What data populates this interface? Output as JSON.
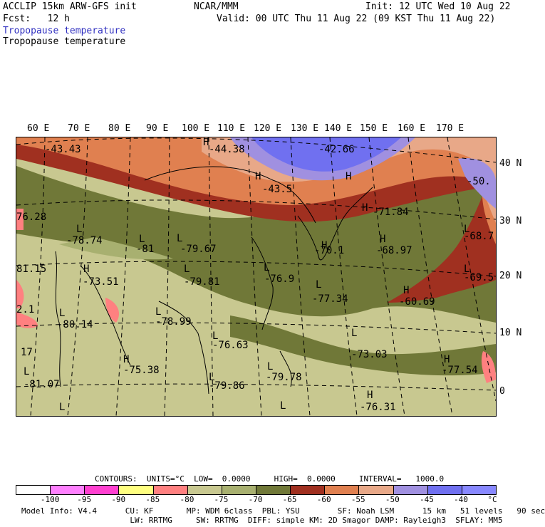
{
  "header": {
    "line1_left": "ACCLIP 15km ARW-GFS init",
    "line1_center": "NCAR/MMM",
    "line1_right": "Init: 12 UTC Wed 10 Aug 22",
    "line2_left": "Fcst:   12 h",
    "line2_right": "Valid: 00 UTC Thu 11 Aug 22 (09 KST Thu 11 Aug 22)",
    "title_blue": "Tropopause temperature",
    "title_black": "Tropopause temperature"
  },
  "lon_labels": [
    "60 E",
    "70 E",
    "80 E",
    "90 E",
    "100 E",
    "110 E",
    "120 E",
    "130 E",
    "140 E",
    "150 E",
    "160 E",
    "170 E"
  ],
  "lat_labels": [
    "40 N",
    "30 N",
    "20 N",
    "10 N",
    "0"
  ],
  "map_labels": [
    {
      "text": "-43.43",
      "kind": "value"
    },
    {
      "text": "H",
      "kind": "hl"
    },
    {
      "text": "-44.38",
      "kind": "value"
    },
    {
      "text": "-42.66",
      "kind": "value"
    },
    {
      "text": "H",
      "kind": "hl"
    },
    {
      "text": "-43.5",
      "kind": "value"
    },
    {
      "text": "H",
      "kind": "hl"
    },
    {
      "text": "-50.",
      "kind": "value"
    },
    {
      "text": "H",
      "kind": "hl"
    },
    {
      "text": "-71.84",
      "kind": "value"
    },
    {
      "text": "76.28",
      "kind": "value"
    },
    {
      "text": "L",
      "kind": "hl"
    },
    {
      "text": "-78.74",
      "kind": "value"
    },
    {
      "text": "L",
      "kind": "hl"
    },
    {
      "text": "-81",
      "kind": "value"
    },
    {
      "text": "L",
      "kind": "hl"
    },
    {
      "text": "-79.67",
      "kind": "value"
    },
    {
      "text": "H",
      "kind": "hl"
    },
    {
      "text": "-70.1",
      "kind": "value"
    },
    {
      "text": "H",
      "kind": "hl"
    },
    {
      "text": "-68.97",
      "kind": "value"
    },
    {
      "text": "L",
      "kind": "hl"
    },
    {
      "text": "-68.7",
      "kind": "value"
    },
    {
      "text": "81.15",
      "kind": "value"
    },
    {
      "text": "H",
      "kind": "hl"
    },
    {
      "text": "-73.51",
      "kind": "value"
    },
    {
      "text": "L",
      "kind": "hl"
    },
    {
      "text": "-79.81",
      "kind": "value"
    },
    {
      "text": "L",
      "kind": "hl"
    },
    {
      "text": "-76.9",
      "kind": "value"
    },
    {
      "text": "L",
      "kind": "hl"
    },
    {
      "text": "-69.5",
      "kind": "value"
    },
    {
      "text": "L",
      "kind": "hl"
    },
    {
      "text": "-77.34",
      "kind": "value"
    },
    {
      "text": "H",
      "kind": "hl"
    },
    {
      "text": "-60.69",
      "kind": "value"
    },
    {
      "text": "L",
      "kind": "hl"
    },
    {
      "text": "-80.14",
      "kind": "value"
    },
    {
      "text": "L",
      "kind": "hl"
    },
    {
      "text": "-78.99",
      "kind": "value"
    },
    {
      "text": "L",
      "kind": "hl"
    },
    {
      "text": "-76.63",
      "kind": "value"
    },
    {
      "text": "L",
      "kind": "hl"
    },
    {
      "text": "-73.03",
      "kind": "value"
    },
    {
      "text": "2.1",
      "kind": "value"
    },
    {
      "text": "17",
      "kind": "value"
    },
    {
      "text": "H",
      "kind": "hl"
    },
    {
      "text": "-75.38",
      "kind": "value"
    },
    {
      "text": "H",
      "kind": "hl"
    },
    {
      "text": "-77.54",
      "kind": "value"
    },
    {
      "text": "L",
      "kind": "hl"
    },
    {
      "text": "-81.07",
      "kind": "value"
    },
    {
      "text": "L",
      "kind": "hl"
    },
    {
      "text": "-79.86",
      "kind": "value"
    },
    {
      "text": "L",
      "kind": "hl"
    },
    {
      "text": "-79.78",
      "kind": "value"
    },
    {
      "text": "H",
      "kind": "hl"
    },
    {
      "text": "-76.31",
      "kind": "value"
    },
    {
      "text": "L",
      "kind": "hl"
    },
    {
      "text": "L",
      "kind": "hl"
    }
  ],
  "contours_line": "CONTOURS:  UNITS=°C  LOW=  0.0000     HIGH=  0.0000     INTERVAL=   1000.0",
  "legend": {
    "colors": [
      "#ffffff",
      "#ff80ff",
      "#ff40d0",
      "#ffff80",
      "#ff8080",
      "#c8c890",
      "#a8b070",
      "#707838",
      "#a03020",
      "#e08050",
      "#e8a888",
      "#a090e0",
      "#7070f0",
      "#8888ff"
    ],
    "labels": [
      "-100",
      "-95",
      "-90",
      "-85",
      "-80",
      "-75",
      "-70",
      "-65",
      "-60",
      "-55",
      "-50",
      "-45",
      "-40",
      "°C"
    ]
  },
  "footer": {
    "line1": "Model Info: V4.4      CU: KF       MP: WDM 6class  PBL: YSU        SF: Noah LSM      15 km   51 levels   90 sec",
    "line2": "                       LW: RRTMG     SW: RRTMG  DIFF: simple KM: 2D Smagor DAMP: Rayleigh3  SFLAY: MM5"
  }
}
